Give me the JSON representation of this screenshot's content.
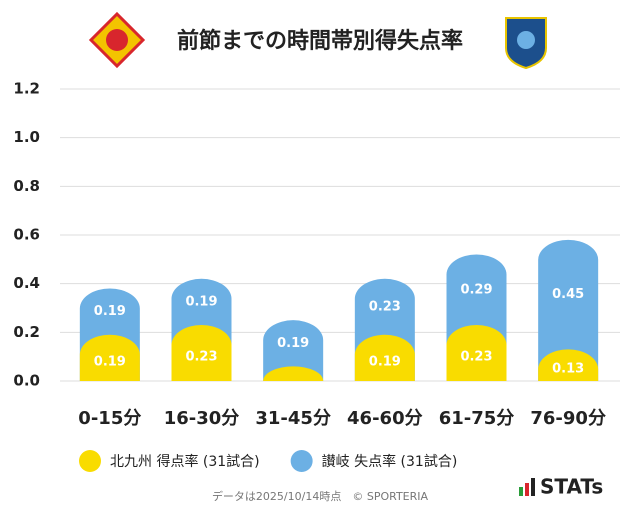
{
  "chart_data": {
    "type": "stacked-bar",
    "title": "前節までの時間帯別得失点率",
    "categories": [
      "0-15分",
      "16-30分",
      "31-45分",
      "46-60分",
      "61-75分",
      "76-90分"
    ],
    "series": [
      {
        "name": "北九州 得点率 (31試合)",
        "color": "#f9dc00",
        "values": [
          0.19,
          0.23,
          0.06,
          0.19,
          0.23,
          0.13
        ],
        "value_labels": [
          "0.19",
          "0.23",
          null,
          "0.19",
          "0.23",
          "0.13"
        ]
      },
      {
        "name": "讃岐 失点率 (31試合)",
        "color": "#6cb0e4",
        "values": [
          0.19,
          0.19,
          0.19,
          0.23,
          0.29,
          0.45
        ]
      }
    ],
    "ylim": [
      0,
      1.2
    ],
    "yticks": [
      {
        "value": 0,
        "label": "0.0"
      },
      0.2,
      0.4,
      0.6,
      0.8,
      {
        "value": 1,
        "label": "1.0"
      },
      1.2
    ],
    "grid": true,
    "footer": "データは2025/10/14時点　© SPORTERIA",
    "brand": "STATs"
  }
}
